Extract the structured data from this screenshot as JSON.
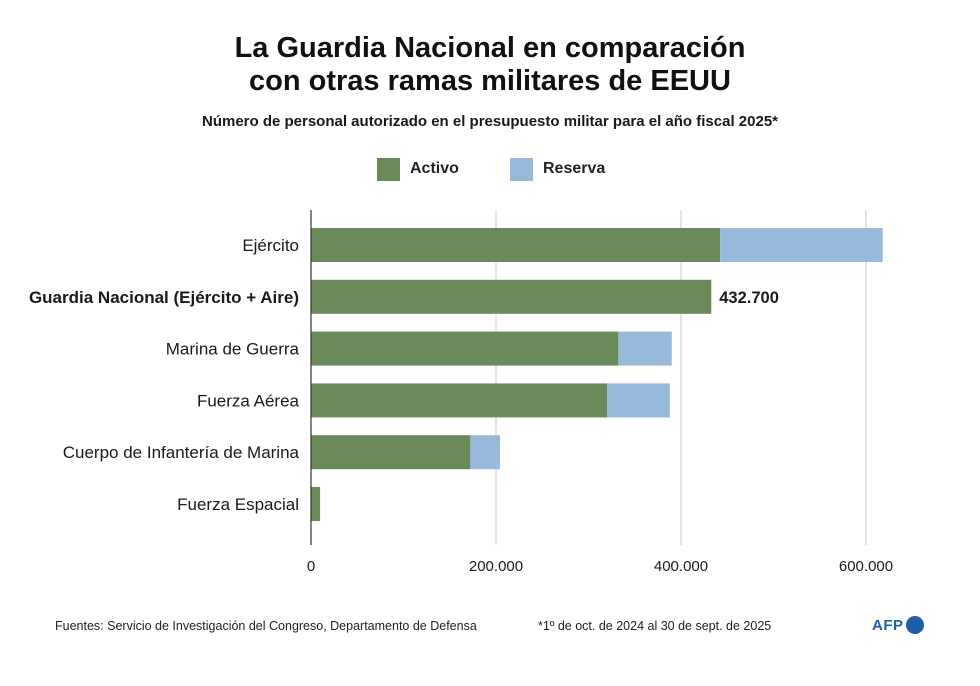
{
  "title": {
    "line1": "La Guardia Nacional en comparación",
    "line2": "con otras ramas militares de EEUU"
  },
  "subtitle": "Número de personal autorizado en el presupuesto militar para el año fiscal 2025*",
  "colors": {
    "activo": "#6b8a5a",
    "reserva": "#97badb",
    "grid": "#c9c9c9",
    "axis": "#333333"
  },
  "chart_data": {
    "type": "bar",
    "orientation": "horizontal",
    "stacked": true,
    "categories": [
      "Ejército",
      "Guardia Nacional (Ejército + Aire)",
      "Marina de Guerra",
      "Fuerza Aérea",
      "Cuerpo de Infantería de Marina",
      "Fuerza Espacial"
    ],
    "highlight_category": "Guardia Nacional (Ejército + Aire)",
    "series": [
      {
        "name": "Activo",
        "values": [
          442300,
          432700,
          332300,
          320000,
          172300,
          9800
        ]
      },
      {
        "name": "Reserva",
        "values": [
          175800,
          0,
          57700,
          68000,
          32000,
          0
        ]
      }
    ],
    "data_labels": [
      {
        "category": "Guardia Nacional (Ejército + Aire)",
        "label": "432.700"
      }
    ],
    "xlim": [
      0,
      600000
    ],
    "xticks": [
      0,
      200000,
      400000,
      600000
    ],
    "xtick_labels": [
      "0",
      "200.000",
      "400.000",
      "600.000"
    ],
    "grid": true,
    "legend_position": "top-center"
  },
  "footer": {
    "sources": "Fuentes: Servicio de Investigación del Congreso, Departamento de Defensa",
    "note": "*1º de oct. de 2024 al 30 de sept. de 2025",
    "logo": "AFP"
  }
}
